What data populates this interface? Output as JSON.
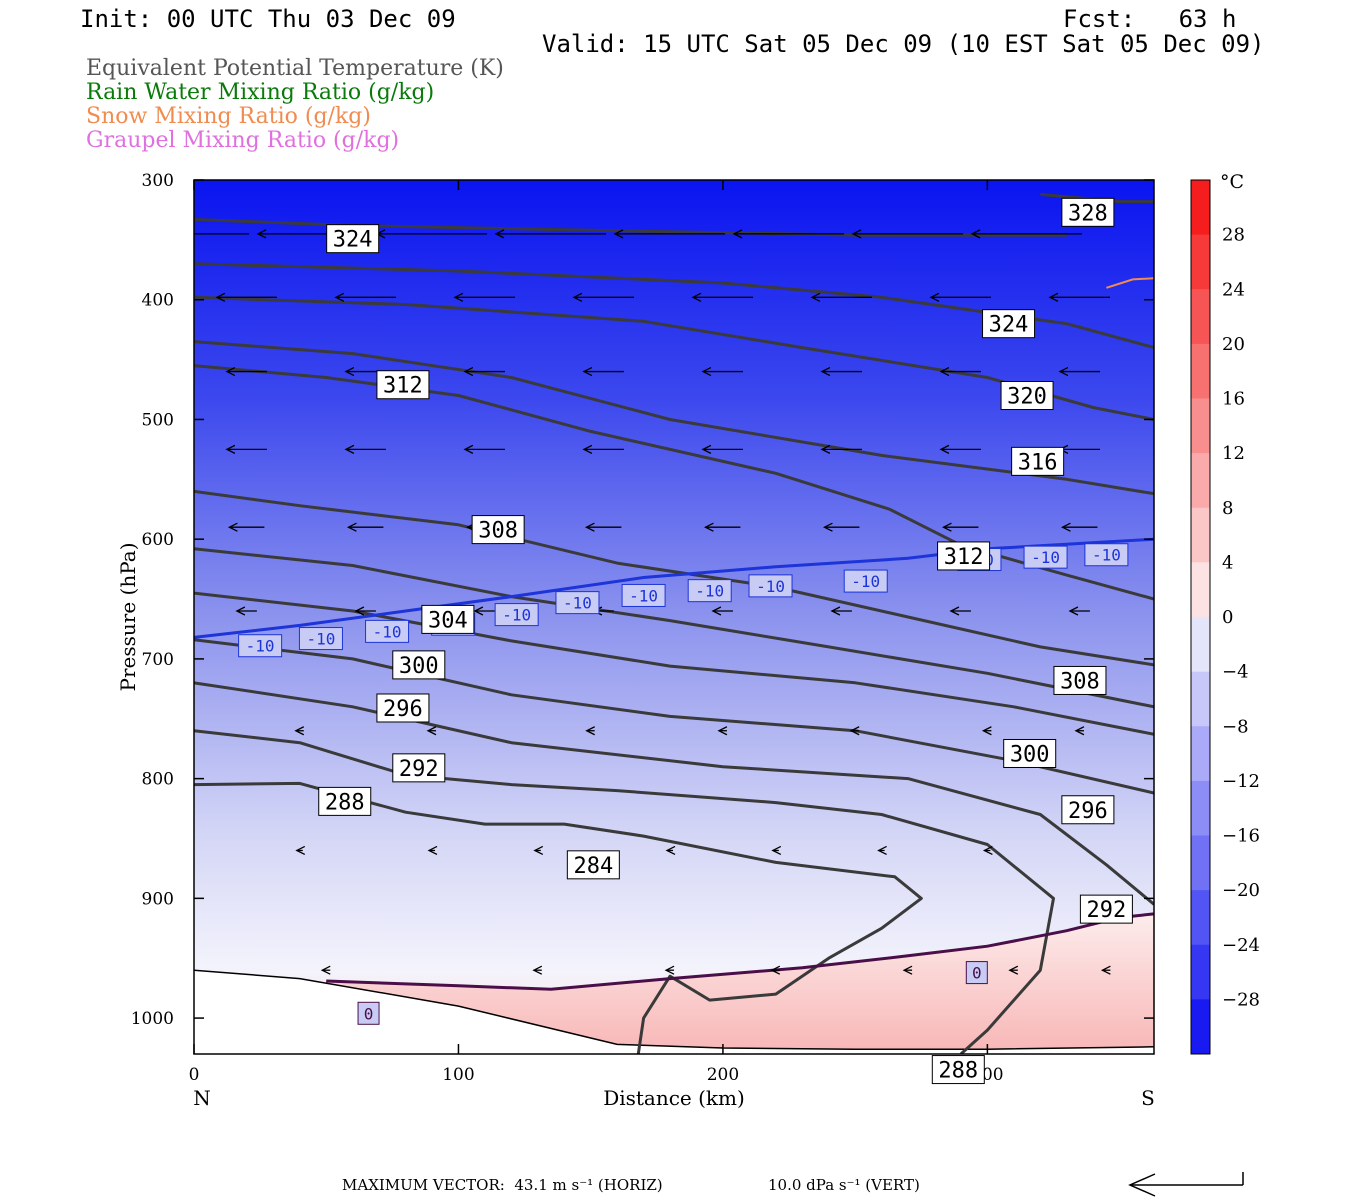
{
  "header": {
    "init": "Init: 00 UTC Thu 03 Dec 09",
    "fcst": "Fcst:   63 h",
    "valid": "Valid: 15 UTC Sat 05 Dec 09 (10 EST Sat 05 Dec 09)"
  },
  "legend": [
    {
      "label": "Equivalent Potential Temperature (K)",
      "color": "#555555"
    },
    {
      "label": "Rain Water Mixing Ratio (g/kg)",
      "color": "#0a7a0a"
    },
    {
      "label": "Snow Mixing Ratio (g/kg)",
      "color": "#f08c50"
    },
    {
      "label": "Graupel Mixing Ratio (g/kg)",
      "color": "#e070e0"
    }
  ],
  "footer": {
    "max_vector": "MAXIMUM VECTOR:  43.1 m s⁻¹ (HORIZ)",
    "vert": "10.0 dPa s⁻¹ (VERT)"
  },
  "chart_data": {
    "type": "contour",
    "xlabel": "Distance (km)",
    "ylabel": "Pressure (hPa)",
    "xlim": [
      0,
      363
    ],
    "ylim": [
      1030,
      300
    ],
    "x_ticks": [
      0,
      100,
      200,
      300
    ],
    "y_ticks": [
      300,
      400,
      500,
      600,
      700,
      800,
      900,
      1000
    ],
    "end_labels": {
      "left": "N",
      "right": "S"
    },
    "colorbar": {
      "unit": "°C",
      "range": [
        -32,
        32
      ],
      "step": 4,
      "tick_labels": [
        28,
        24,
        20,
        16,
        12,
        8,
        4,
        0,
        -4,
        -8,
        -12,
        -16,
        -20,
        -24,
        -28
      ]
    },
    "theta_e_contours": [
      {
        "label": "324",
        "points": [
          [
            0,
            333
          ],
          [
            60,
            338
          ],
          [
            150,
            342
          ],
          [
            250,
            346
          ],
          [
            330,
            346
          ]
        ]
      },
      {
        "label": "328",
        "points": [
          [
            320,
            312
          ],
          [
            350,
            318
          ],
          [
            363,
            318
          ]
        ]
      },
      {
        "label": "324",
        "points": [
          [
            0,
            370
          ],
          [
            100,
            376
          ],
          [
            200,
            386
          ],
          [
            260,
            398
          ],
          [
            330,
            420
          ],
          [
            363,
            440
          ]
        ]
      },
      {
        "label": "320",
        "points": [
          [
            0,
            398
          ],
          [
            80,
            404
          ],
          [
            170,
            418
          ],
          [
            230,
            440
          ],
          [
            300,
            465
          ],
          [
            340,
            490
          ],
          [
            363,
            500
          ]
        ]
      },
      {
        "label": "316",
        "points": [
          [
            0,
            435
          ],
          [
            60,
            445
          ],
          [
            120,
            465
          ],
          [
            180,
            500
          ],
          [
            260,
            530
          ],
          [
            330,
            550
          ],
          [
            363,
            562
          ]
        ]
      },
      {
        "label": "312",
        "points": [
          [
            0,
            455
          ],
          [
            50,
            465
          ],
          [
            100,
            480
          ],
          [
            150,
            510
          ],
          [
            220,
            545
          ],
          [
            263,
            575
          ],
          [
            290,
            605
          ],
          [
            330,
            630
          ],
          [
            363,
            650
          ]
        ]
      },
      {
        "label": "308",
        "points": [
          [
            0,
            560
          ],
          [
            40,
            572
          ],
          [
            100,
            588
          ],
          [
            160,
            620
          ],
          [
            220,
            640
          ],
          [
            270,
            665
          ],
          [
            320,
            690
          ],
          [
            363,
            705
          ]
        ]
      },
      {
        "label": "304",
        "points": [
          [
            0,
            608
          ],
          [
            60,
            622
          ],
          [
            120,
            648
          ],
          [
            180,
            668
          ],
          [
            240,
            690
          ],
          [
            300,
            712
          ],
          [
            363,
            740
          ]
        ]
      },
      {
        "label": "300",
        "points": [
          [
            0,
            645
          ],
          [
            60,
            660
          ],
          [
            120,
            685
          ],
          [
            180,
            706
          ],
          [
            250,
            720
          ],
          [
            310,
            740
          ],
          [
            363,
            763
          ]
        ]
      },
      {
        "label": "296",
        "points": [
          [
            0,
            684
          ],
          [
            60,
            700
          ],
          [
            120,
            730
          ],
          [
            180,
            748
          ],
          [
            250,
            760
          ],
          [
            310,
            785
          ],
          [
            363,
            812
          ]
        ]
      },
      {
        "label": "292",
        "points": [
          [
            0,
            720
          ],
          [
            60,
            740
          ],
          [
            120,
            770
          ],
          [
            200,
            790
          ],
          [
            270,
            800
          ],
          [
            320,
            830
          ],
          [
            345,
            872
          ],
          [
            363,
            905
          ]
        ]
      },
      {
        "label": "288",
        "points": [
          [
            0,
            760
          ],
          [
            40,
            770
          ],
          [
            80,
            797
          ],
          [
            120,
            805
          ],
          [
            160,
            810
          ],
          [
            220,
            820
          ],
          [
            260,
            830
          ],
          [
            300,
            855
          ],
          [
            325,
            900
          ],
          [
            320,
            960
          ],
          [
            300,
            1010
          ],
          [
            290,
            1030
          ]
        ]
      },
      {
        "label": "284",
        "points": [
          [
            0,
            805
          ],
          [
            40,
            804
          ],
          [
            80,
            828
          ],
          [
            110,
            838
          ],
          [
            140,
            838
          ],
          [
            170,
            848
          ],
          [
            220,
            870
          ],
          [
            265,
            882
          ],
          [
            275,
            900
          ],
          [
            260,
            925
          ],
          [
            240,
            950
          ],
          [
            220,
            980
          ],
          [
            195,
            985
          ],
          [
            180,
            965
          ],
          [
            170,
            1000
          ],
          [
            168,
            1030
          ]
        ]
      }
    ],
    "theta_e_labels": [
      {
        "text": "324",
        "x": 60,
        "p": 349
      },
      {
        "text": "328",
        "x": 338,
        "p": 327
      },
      {
        "text": "324",
        "x": 308,
        "p": 420
      },
      {
        "text": "312",
        "x": 79,
        "p": 471
      },
      {
        "text": "320",
        "x": 315,
        "p": 480
      },
      {
        "text": "316",
        "x": 319,
        "p": 535
      },
      {
        "text": "308",
        "x": 115,
        "p": 592
      },
      {
        "text": "312",
        "x": 291,
        "p": 614
      },
      {
        "text": "304",
        "x": 96,
        "p": 667
      },
      {
        "text": "300",
        "x": 85,
        "p": 705
      },
      {
        "text": "308",
        "x": 335,
        "p": 718
      },
      {
        "text": "296",
        "x": 79,
        "p": 741
      },
      {
        "text": "300",
        "x": 316,
        "p": 779
      },
      {
        "text": "292",
        "x": 85,
        "p": 791
      },
      {
        "text": "288",
        "x": 57,
        "p": 819
      },
      {
        "text": "296",
        "x": 338,
        "p": 826
      },
      {
        "text": "284",
        "x": 151,
        "p": 872
      },
      {
        "text": "292",
        "x": 345,
        "p": 909
      },
      {
        "text": "288",
        "x": 289,
        "p": 1043
      }
    ],
    "isotherms": [
      {
        "label": "-10",
        "color": "#1c34d8",
        "points": [
          [
            0,
            682
          ],
          [
            40,
            672
          ],
          [
            80,
            660
          ],
          [
            120,
            648
          ],
          [
            170,
            632
          ],
          [
            220,
            623
          ],
          [
            270,
            616
          ],
          [
            300,
            608
          ],
          [
            363,
            600
          ]
        ]
      },
      {
        "label": "0",
        "color": "#4a0f48",
        "points": [
          [
            50,
            969
          ],
          [
            100,
            973
          ],
          [
            135,
            976
          ],
          [
            180,
            967
          ],
          [
            230,
            958
          ],
          [
            270,
            948
          ],
          [
            300,
            940
          ],
          [
            330,
            927
          ],
          [
            350,
            916
          ],
          [
            363,
            913
          ]
        ]
      }
    ],
    "isotherm_labels": [
      {
        "text": "-10",
        "x": 25,
        "p": 689
      },
      {
        "text": "-10",
        "x": 48,
        "p": 683
      },
      {
        "text": "-10",
        "x": 73,
        "p": 677
      },
      {
        "text": "-10",
        "x": 98,
        "p": 671
      },
      {
        "text": "-10",
        "x": 122,
        "p": 663
      },
      {
        "text": "-10",
        "x": 145,
        "p": 653
      },
      {
        "text": "-10",
        "x": 170,
        "p": 647
      },
      {
        "text": "-10",
        "x": 195,
        "p": 643
      },
      {
        "text": "-10",
        "x": 218,
        "p": 639
      },
      {
        "text": "-10",
        "x": 254,
        "p": 635
      },
      {
        "text": "-10",
        "x": 297,
        "p": 617
      },
      {
        "text": "-10",
        "x": 322,
        "p": 615
      },
      {
        "text": "-10",
        "x": 345,
        "p": 613
      },
      {
        "text": "0",
        "x": 66,
        "p": 996
      },
      {
        "text": "0",
        "x": 296,
        "p": 962
      }
    ],
    "snow_contour": {
      "color": "#f08c50",
      "points": [
        [
          345,
          390
        ],
        [
          355,
          383
        ],
        [
          363,
          382
        ]
      ]
    },
    "terrain_boundary": [
      [
        0,
        960
      ],
      [
        40,
        967
      ],
      [
        100,
        990
      ],
      [
        160,
        1022
      ],
      [
        200,
        1025
      ],
      [
        250,
        1026
      ],
      [
        300,
        1026
      ],
      [
        363,
        1024
      ]
    ],
    "temperature_field_note": "shaded temperature (°C): cold aloft, warming toward surface; positive near surface at south"
  }
}
